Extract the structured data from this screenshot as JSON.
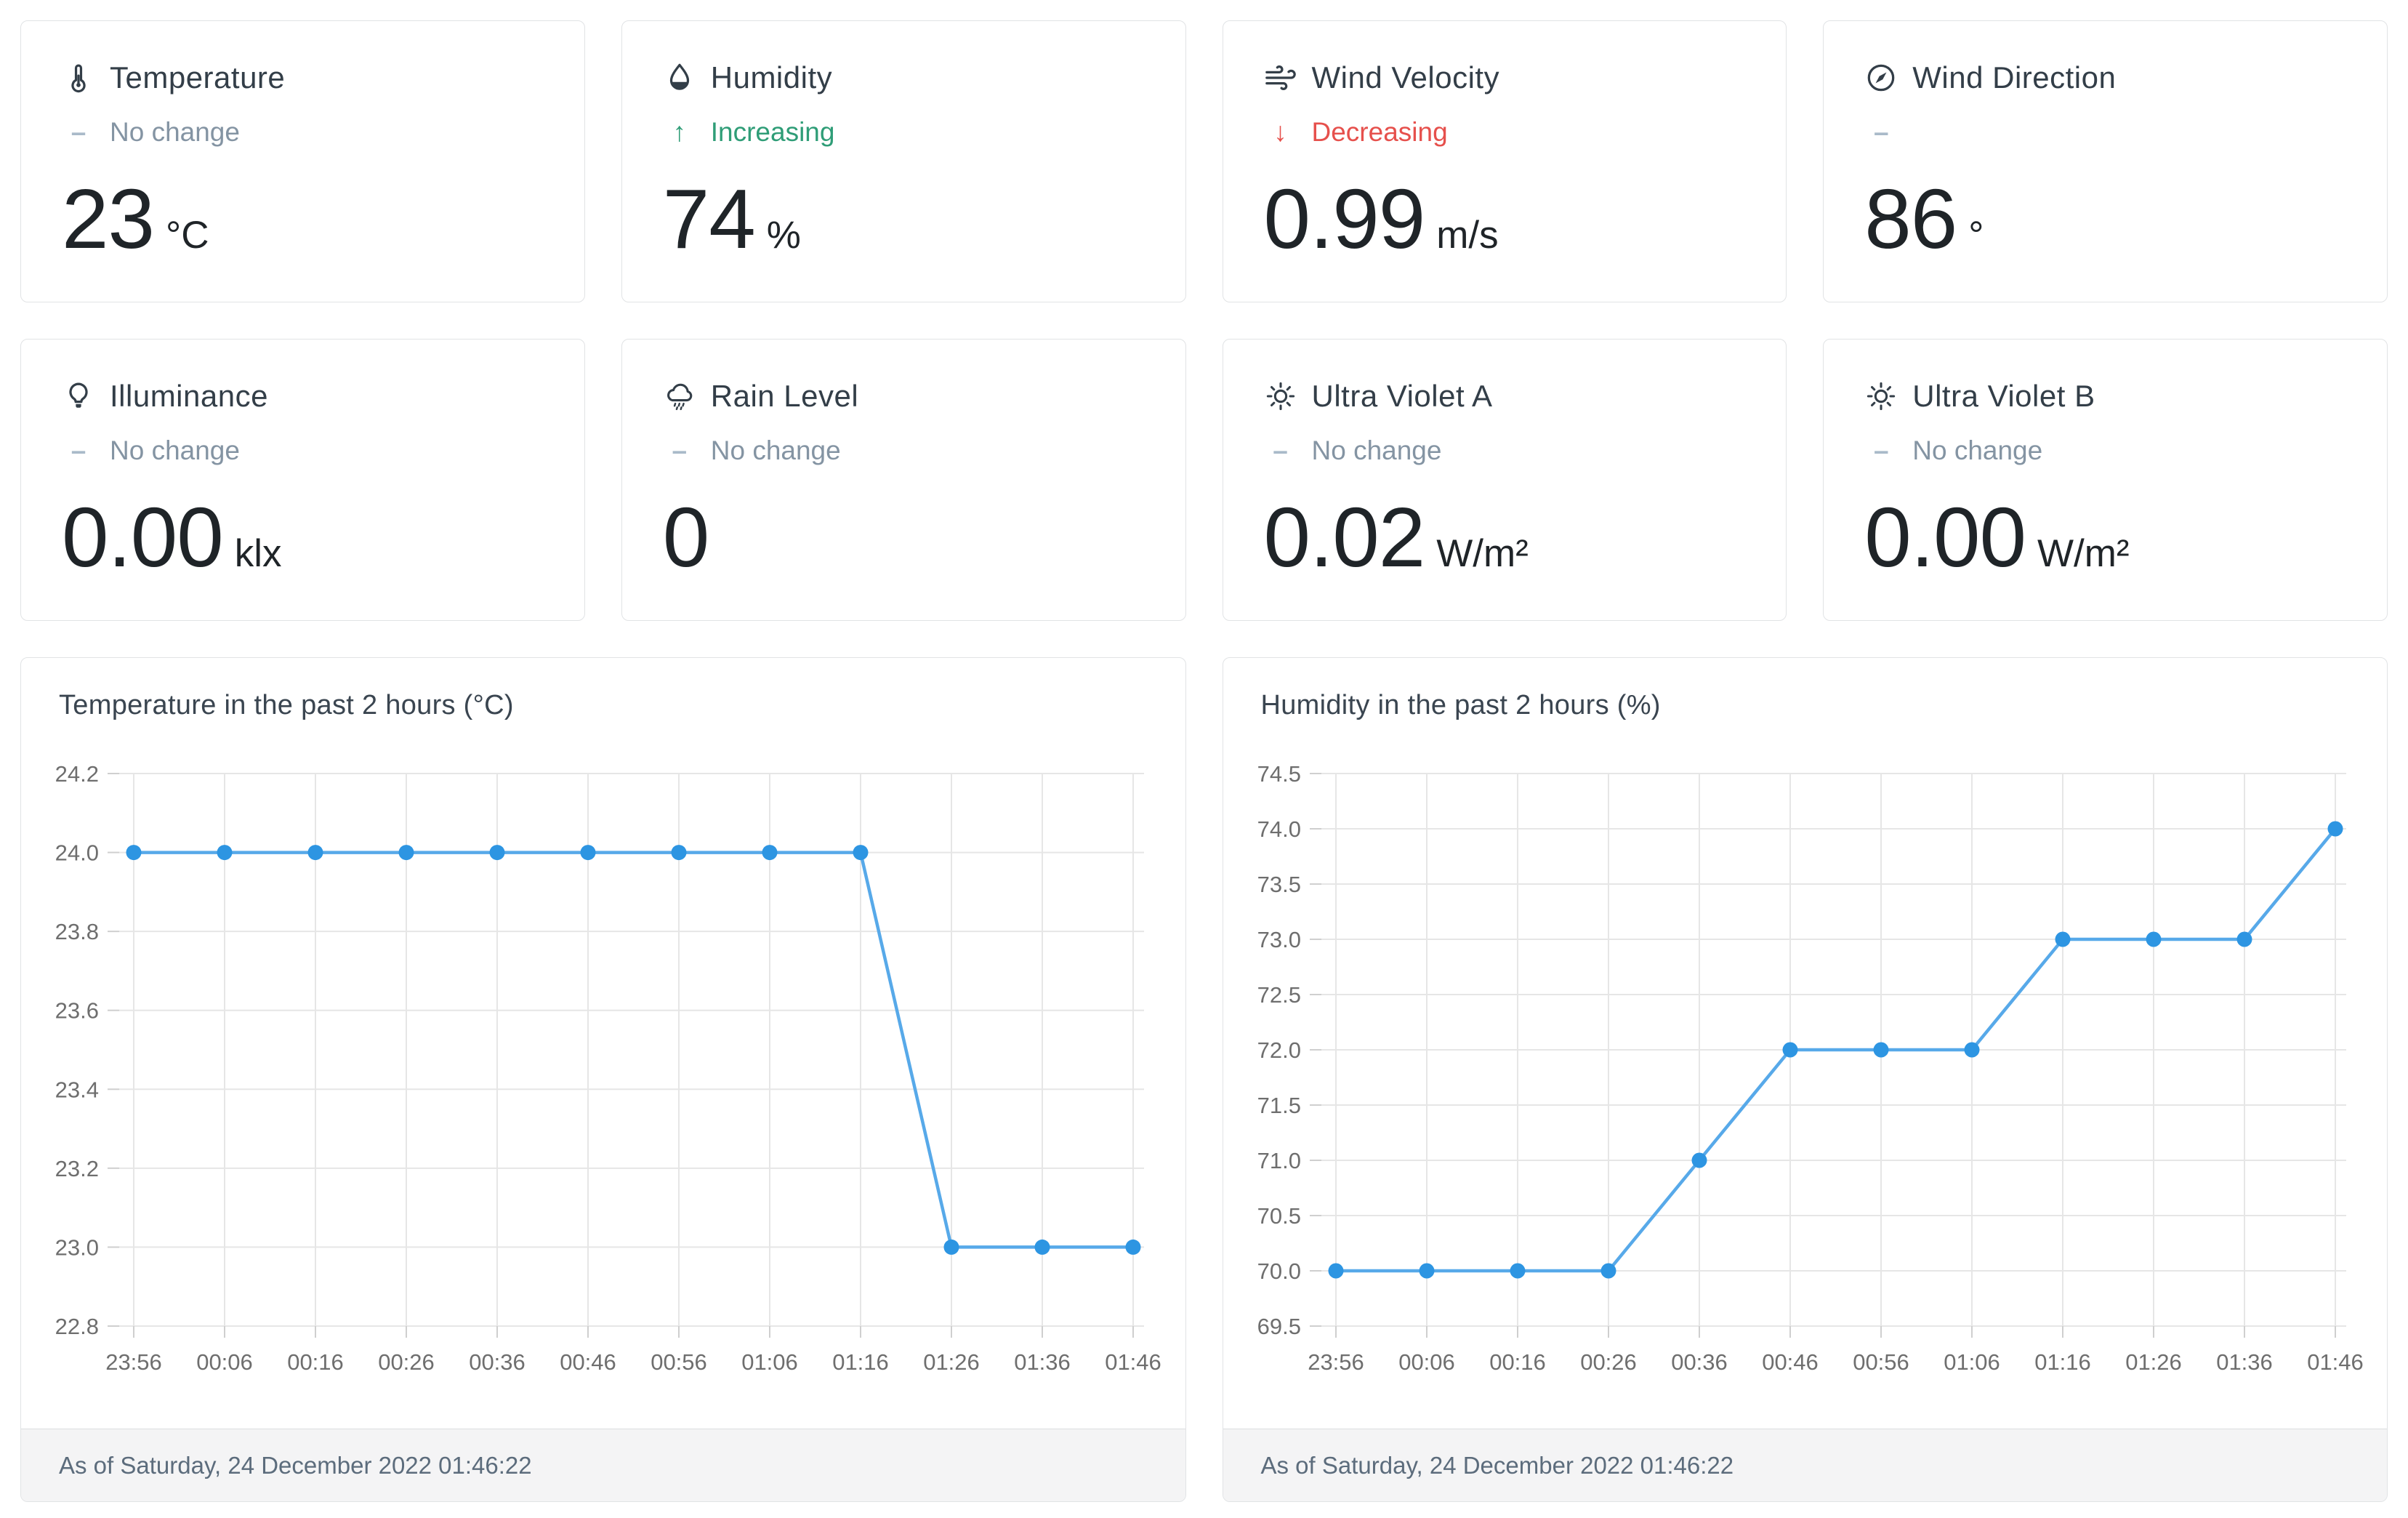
{
  "trend_symbols": {
    "none": "–",
    "up": "↑",
    "down": "↓",
    "dash": "–"
  },
  "colors": {
    "trend_no_change": "#8494a3",
    "trend_increasing": "#2f9d77",
    "trend_decreasing": "#e6504c",
    "chart_line": "#57a9e9",
    "chart_point": "#2d95e2",
    "grid_line": "#e6e6e6",
    "axis_label": "#6e6e6e"
  },
  "cards": [
    {
      "id": "temperature",
      "title": "Temperature",
      "icon": "thermometer-icon",
      "trend": "none",
      "trend_label": "No change",
      "value": "23",
      "unit": "°C"
    },
    {
      "id": "humidity",
      "title": "Humidity",
      "icon": "droplet-icon",
      "trend": "up",
      "trend_label": "Increasing",
      "value": "74",
      "unit": "%"
    },
    {
      "id": "wind-velocity",
      "title": "Wind Velocity",
      "icon": "wind-icon",
      "trend": "down",
      "trend_label": "Decreasing",
      "value": "0.99",
      "unit": "m/s"
    },
    {
      "id": "wind-direction",
      "title": "Wind Direction",
      "icon": "compass-icon",
      "trend": "dash",
      "trend_label": "",
      "value": "86",
      "unit": "°"
    },
    {
      "id": "illuminance",
      "title": "Illuminance",
      "icon": "bulb-icon",
      "trend": "none",
      "trend_label": "No change",
      "value": "0.00",
      "unit": "klx"
    },
    {
      "id": "rain-level",
      "title": "Rain Level",
      "icon": "rain-cloud-icon",
      "trend": "none",
      "trend_label": "No change",
      "value": "0",
      "unit": ""
    },
    {
      "id": "ultra-violet-a",
      "title": "Ultra Violet A",
      "icon": "sun-icon",
      "trend": "none",
      "trend_label": "No change",
      "value": "0.02",
      "unit": "W/m²"
    },
    {
      "id": "ultra-violet-b",
      "title": "Ultra Violet B",
      "icon": "sun-icon",
      "trend": "none",
      "trend_label": "No change",
      "value": "0.00",
      "unit": "W/m²"
    }
  ],
  "chart_data": [
    {
      "type": "line",
      "title": "Temperature in the past 2 hours (°C)",
      "x": [
        "23:56",
        "00:06",
        "00:16",
        "00:26",
        "00:36",
        "00:46",
        "00:56",
        "01:06",
        "01:16",
        "01:26",
        "01:36",
        "01:46"
      ],
      "values": [
        24.0,
        24.0,
        24.0,
        24.0,
        24.0,
        24.0,
        24.0,
        24.0,
        24.0,
        23.0,
        23.0,
        23.0
      ],
      "ylim": [
        22.8,
        24.2
      ],
      "y_ticks": [
        "24.2",
        "24.0",
        "23.8",
        "23.6",
        "23.4",
        "23.2",
        "23.0",
        "22.8"
      ],
      "grid": true,
      "legend": "none",
      "footer": "As of Saturday, 24 December 2022 01:46:22"
    },
    {
      "type": "line",
      "title": "Humidity in the past 2 hours (%)",
      "x": [
        "23:56",
        "00:06",
        "00:16",
        "00:26",
        "00:36",
        "00:46",
        "00:56",
        "01:06",
        "01:16",
        "01:26",
        "01:36",
        "01:46"
      ],
      "values": [
        70.0,
        70.0,
        70.0,
        70.0,
        71.0,
        72.0,
        72.0,
        72.0,
        73.0,
        73.0,
        73.0,
        74.0
      ],
      "ylim": [
        69.5,
        74.5
      ],
      "y_ticks": [
        "74.5",
        "74.0",
        "73.5",
        "73.0",
        "72.5",
        "72.0",
        "71.5",
        "71.0",
        "70.5",
        "70.0",
        "69.5"
      ],
      "grid": true,
      "legend": "none",
      "footer": "As of Saturday, 24 December 2022 01:46:22"
    }
  ]
}
